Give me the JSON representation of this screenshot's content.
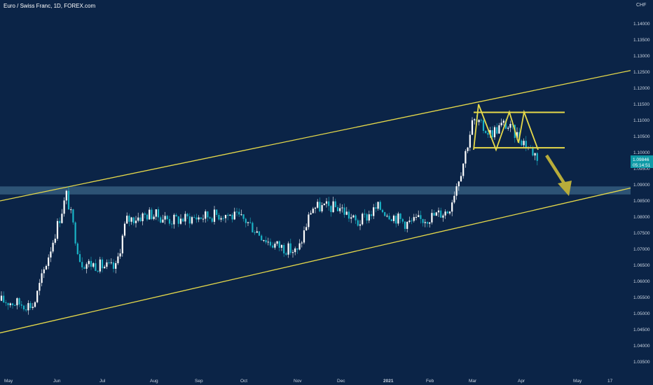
{
  "header": {
    "title": "Euro / Swiss Franc, 1D, FOREX.com",
    "currency": "CHF"
  },
  "price_tag": {
    "price": "1.09846",
    "countdown": "05:14:51",
    "color": "#0e9aa7"
  },
  "colors": {
    "background": "#0b2447",
    "candle_up": "#ffffff",
    "candle_down": "#1ab3c6",
    "trendline": "#e6d94a",
    "zone": "#4a7a9b",
    "axis_text": "#c9d3e0"
  },
  "chart_data": {
    "type": "candlestick",
    "title": "Euro / Swiss Franc, 1D, FOREX.com",
    "y_axis": {
      "side": "right",
      "unit": "CHF",
      "range": [
        1.0325,
        1.1185
      ],
      "ticks": [
        "1.11500",
        "1.11000",
        "1.10500",
        "1.10000",
        "1.09500",
        "1.09000",
        "1.08500",
        "1.08000",
        "1.07500",
        "1.07000",
        "1.06500",
        "1.06000",
        "1.05500",
        "1.05000",
        "1.04500",
        "1.04000",
        "1.03500",
        "1.14000",
        "1.13500",
        "1.13000",
        "1.12500",
        "1.12000"
      ]
    },
    "x_axis": {
      "ticks": [
        "May",
        "Jun",
        "Jul",
        "Aug",
        "Sep",
        "Oct",
        "Nov",
        "Dec",
        "2021",
        "Feb",
        "Mar",
        "Apr",
        "May",
        "17"
      ]
    },
    "close_series": [
      {
        "date": "May",
        "close": 1.054
      },
      {
        "date": "mid-May",
        "close": 1.0525
      },
      {
        "date": "Jun",
        "close": 1.087
      },
      {
        "date": "mid-Jun",
        "close": 1.066
      },
      {
        "date": "Jul",
        "close": 1.064
      },
      {
        "date": "mid-Jul",
        "close": 1.079
      },
      {
        "date": "Aug",
        "close": 1.081
      },
      {
        "date": "mid-Aug",
        "close": 1.079
      },
      {
        "date": "Sep",
        "close": 1.08
      },
      {
        "date": "mid-Sep",
        "close": 1.081
      },
      {
        "date": "Oct",
        "close": 1.079
      },
      {
        "date": "mid-Oct",
        "close": 1.072
      },
      {
        "date": "Nov",
        "close": 1.069
      },
      {
        "date": "mid-Nov",
        "close": 1.083
      },
      {
        "date": "Dec",
        "close": 1.083
      },
      {
        "date": "mid-Dec",
        "close": 1.078
      },
      {
        "date": "2021",
        "close": 1.083
      },
      {
        "date": "mid-Jan",
        "close": 1.078
      },
      {
        "date": "Feb",
        "close": 1.079
      },
      {
        "date": "mid-Feb",
        "close": 1.082
      },
      {
        "date": "end-Feb",
        "close": 1.096
      },
      {
        "date": "Mar",
        "close": 1.11
      },
      {
        "date": "mid-Mar",
        "close": 1.106
      },
      {
        "date": "late-Mar",
        "close": 1.109
      },
      {
        "date": "Apr",
        "close": 1.104
      },
      {
        "date": "early-Apr",
        "close": 1.0985
      }
    ],
    "annotations": {
      "resistance_zone": [
        1.087,
        1.0895
      ],
      "double_top_resistance": 1.1125,
      "neckline": 1.1015,
      "channel_upper": {
        "start": 1.085,
        "end": 1.1255
      },
      "channel_lower": {
        "start": 1.044,
        "end": 1.089
      },
      "projection_arrow": "down"
    }
  }
}
